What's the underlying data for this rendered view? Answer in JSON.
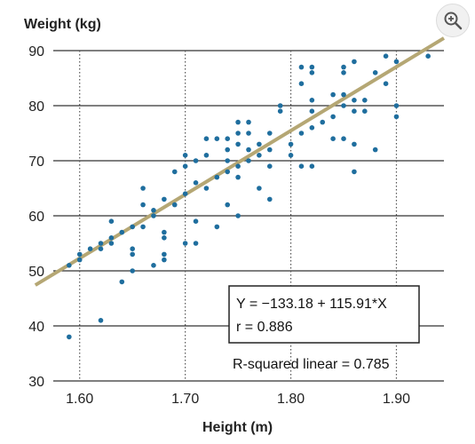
{
  "chart_data": {
    "type": "scatter",
    "ylabel": "Weight (kg)",
    "xlabel": "Height (m)",
    "xlim": [
      1.575,
      1.945
    ],
    "ylim": [
      30,
      90
    ],
    "x_ticks": [
      "1.60",
      "1.70",
      "1.80",
      "1.90"
    ],
    "x_tick_values": [
      1.6,
      1.7,
      1.8,
      1.9
    ],
    "y_ticks": [
      "30",
      "40",
      "50",
      "60",
      "70",
      "80",
      "90"
    ],
    "y_tick_values": [
      30,
      40,
      50,
      60,
      70,
      80,
      90
    ],
    "grid": "horizontal solid, vertical dotted",
    "point_color": "#1f6e9e",
    "line_color": "#b5a774",
    "regression": {
      "intercept": -133.18,
      "slope": 115.91,
      "r": 0.886,
      "r_squared": 0.785
    },
    "annotation_box": [
      "Y = −133.18 + 115.91*X",
      "r = 0.886"
    ],
    "r_squared_label": "R-squared linear = 0.785",
    "points": [
      [
        1.59,
        38
      ],
      [
        1.59,
        51
      ],
      [
        1.6,
        52
      ],
      [
        1.6,
        53
      ],
      [
        1.61,
        54
      ],
      [
        1.62,
        41
      ],
      [
        1.62,
        54
      ],
      [
        1.62,
        55
      ],
      [
        1.63,
        55
      ],
      [
        1.63,
        56
      ],
      [
        1.63,
        59
      ],
      [
        1.64,
        48
      ],
      [
        1.64,
        57
      ],
      [
        1.65,
        50
      ],
      [
        1.65,
        53
      ],
      [
        1.65,
        54
      ],
      [
        1.65,
        58
      ],
      [
        1.66,
        58
      ],
      [
        1.66,
        62
      ],
      [
        1.66,
        65
      ],
      [
        1.67,
        51
      ],
      [
        1.67,
        60
      ],
      [
        1.67,
        61
      ],
      [
        1.68,
        52
      ],
      [
        1.68,
        53
      ],
      [
        1.68,
        56
      ],
      [
        1.68,
        57
      ],
      [
        1.68,
        63
      ],
      [
        1.69,
        62
      ],
      [
        1.69,
        68
      ],
      [
        1.7,
        55
      ],
      [
        1.7,
        64
      ],
      [
        1.7,
        69
      ],
      [
        1.7,
        71
      ],
      [
        1.71,
        55
      ],
      [
        1.71,
        59
      ],
      [
        1.71,
        66
      ],
      [
        1.71,
        70
      ],
      [
        1.72,
        65
      ],
      [
        1.72,
        71
      ],
      [
        1.72,
        74
      ],
      [
        1.73,
        58
      ],
      [
        1.73,
        67
      ],
      [
        1.73,
        74
      ],
      [
        1.74,
        62
      ],
      [
        1.74,
        68
      ],
      [
        1.74,
        70
      ],
      [
        1.74,
        72
      ],
      [
        1.74,
        74
      ],
      [
        1.75,
        60
      ],
      [
        1.75,
        67
      ],
      [
        1.75,
        69
      ],
      [
        1.75,
        73
      ],
      [
        1.75,
        75
      ],
      [
        1.75,
        77
      ],
      [
        1.76,
        70
      ],
      [
        1.76,
        72
      ],
      [
        1.76,
        75
      ],
      [
        1.76,
        77
      ],
      [
        1.77,
        65
      ],
      [
        1.77,
        71
      ],
      [
        1.77,
        73
      ],
      [
        1.78,
        63
      ],
      [
        1.78,
        69
      ],
      [
        1.78,
        72
      ],
      [
        1.78,
        75
      ],
      [
        1.79,
        79
      ],
      [
        1.79,
        80
      ],
      [
        1.8,
        71
      ],
      [
        1.8,
        73
      ],
      [
        1.81,
        69
      ],
      [
        1.81,
        75
      ],
      [
        1.81,
        84
      ],
      [
        1.81,
        87
      ],
      [
        1.82,
        69
      ],
      [
        1.82,
        76
      ],
      [
        1.82,
        79
      ],
      [
        1.82,
        81
      ],
      [
        1.82,
        86
      ],
      [
        1.82,
        87
      ],
      [
        1.83,
        77
      ],
      [
        1.84,
        74
      ],
      [
        1.84,
        78
      ],
      [
        1.84,
        82
      ],
      [
        1.85,
        74
      ],
      [
        1.85,
        80
      ],
      [
        1.85,
        82
      ],
      [
        1.85,
        86
      ],
      [
        1.85,
        87
      ],
      [
        1.86,
        68
      ],
      [
        1.86,
        73
      ],
      [
        1.86,
        79
      ],
      [
        1.86,
        81
      ],
      [
        1.86,
        88
      ],
      [
        1.87,
        79
      ],
      [
        1.87,
        81
      ],
      [
        1.88,
        72
      ],
      [
        1.88,
        86
      ],
      [
        1.89,
        84
      ],
      [
        1.89,
        89
      ],
      [
        1.9,
        78
      ],
      [
        1.9,
        80
      ],
      [
        1.9,
        88
      ],
      [
        1.93,
        89
      ]
    ]
  },
  "toolbar": {
    "zoom_icon": "zoom-in-icon"
  }
}
